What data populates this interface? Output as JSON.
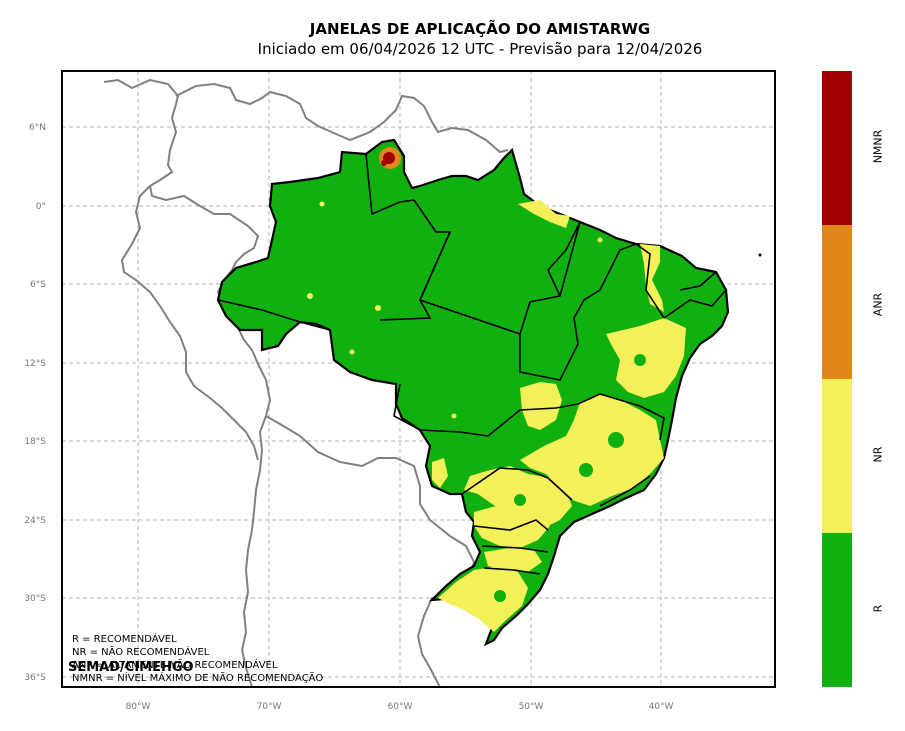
{
  "header": {
    "title": "JANELAS DE APLICAÇÃO DO AMISTARWG",
    "subtitle": "Iniciado em 06/04/2026 12 UTC - Previsão para 12/04/2026"
  },
  "map": {
    "lat_ticks": [
      "6°N",
      "0°",
      "6°S",
      "12°S",
      "18°S",
      "24°S",
      "30°S",
      "36°S"
    ],
    "lon_ticks": [
      "80°W",
      "70°W",
      "60°W",
      "50°W",
      "40°W"
    ],
    "colors": {
      "R": "#10b010",
      "NR": "#f3f05a",
      "ANR": "#e08a1a",
      "NMNR": "#a30000",
      "borders": "#808080",
      "states": "#000000"
    }
  },
  "colorbar": {
    "categories": [
      "NMNR",
      "ANR",
      "NR",
      "R"
    ],
    "colors": [
      "#a30000",
      "#e0891a",
      "#f3f05a",
      "#10b010"
    ]
  },
  "legend": [
    "R = RECOMENDÁVEL",
    "NR = NÃO RECOMENDÁVEL",
    "ANR = ALTAMENTE NÃO RECOMENDÁVEL",
    "NMNR = NÍVEL MÁXIMO DE NÃO RECOMENDAÇÃO"
  ],
  "credit": "SEMAD/CIMEHGO"
}
